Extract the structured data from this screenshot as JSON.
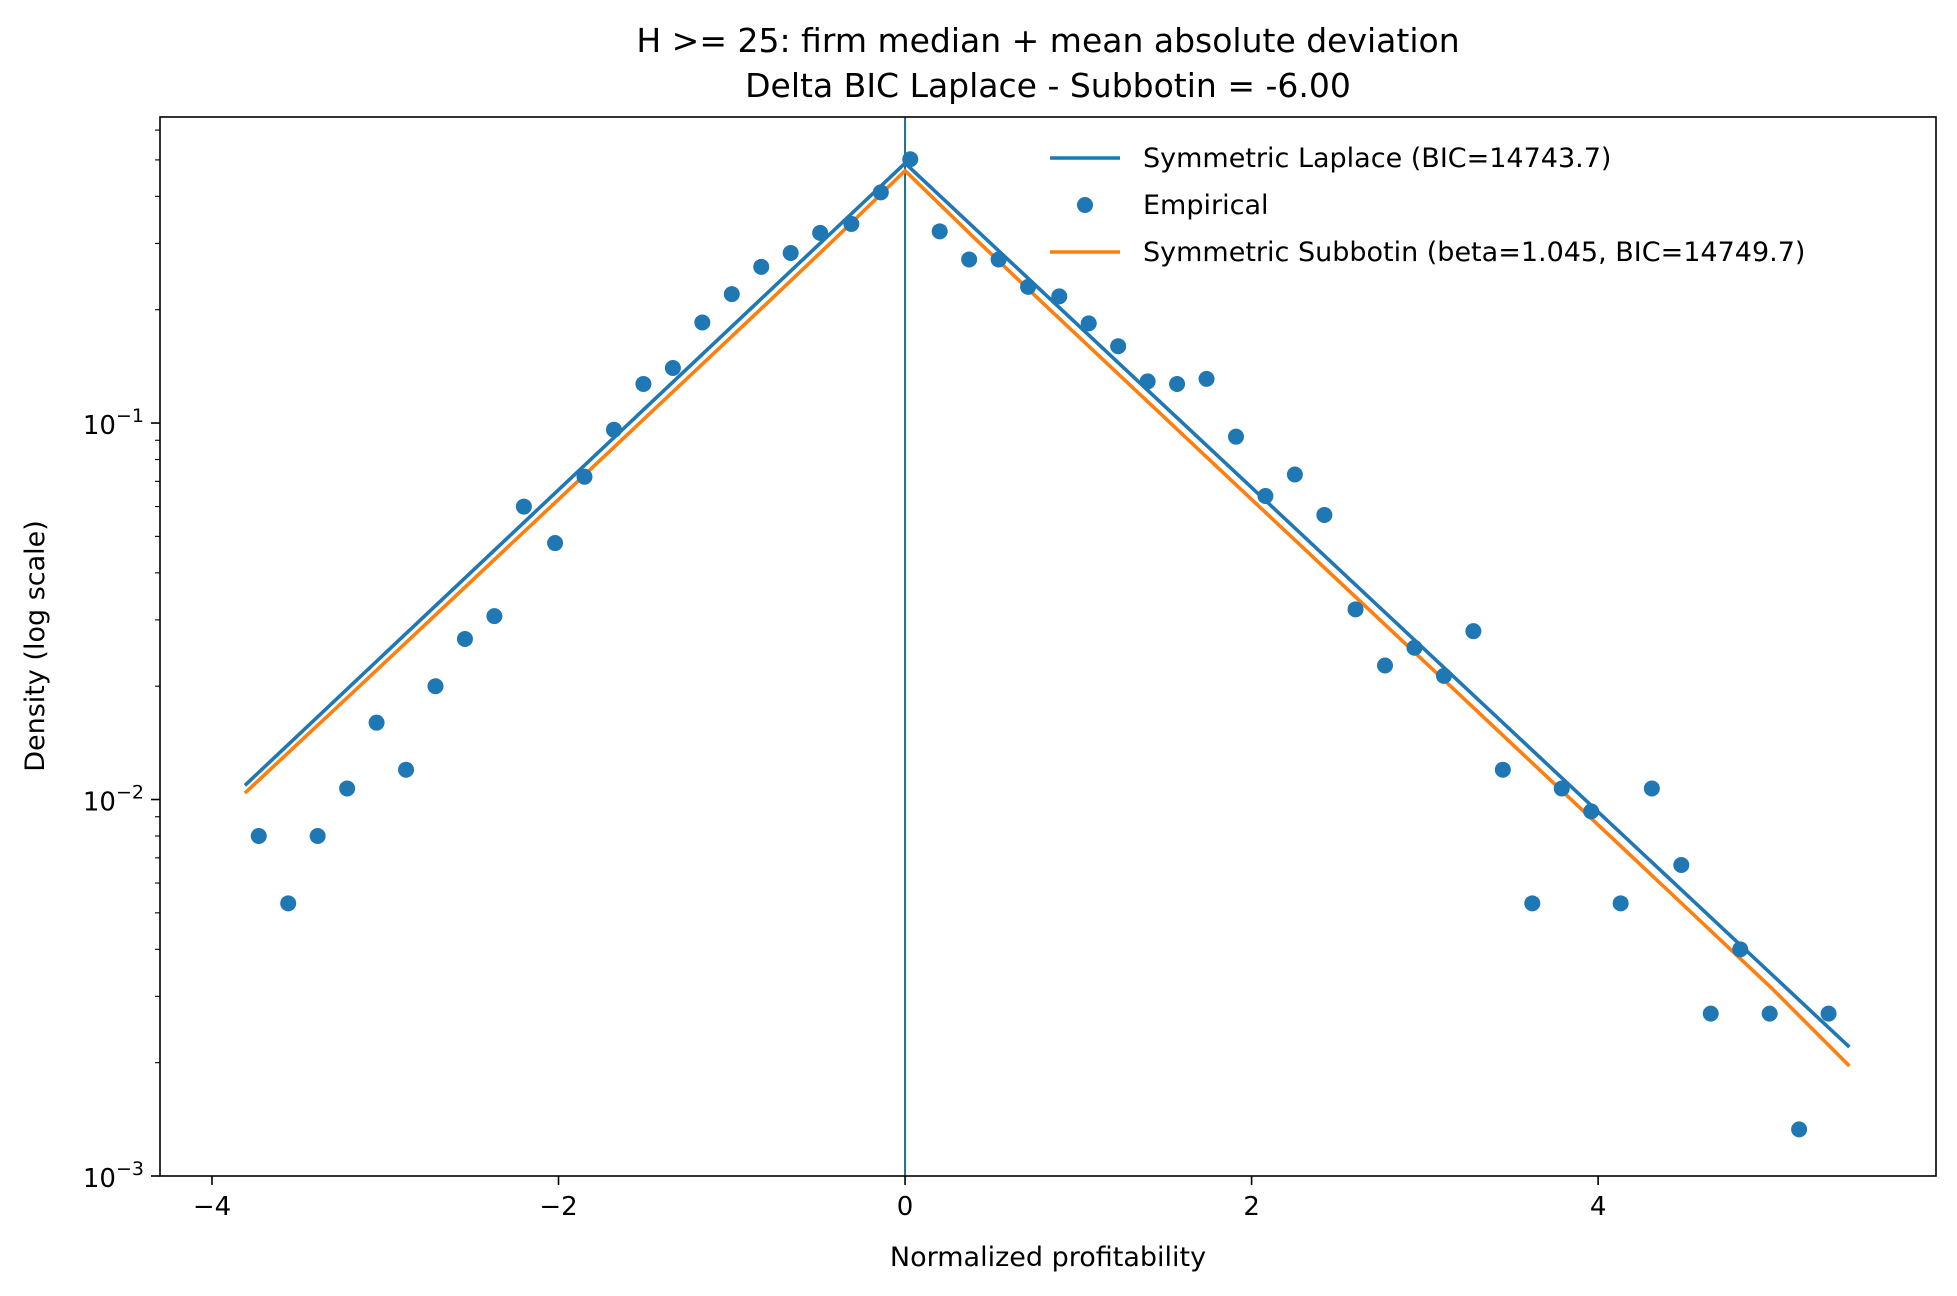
{
  "chart_data": {
    "type": "scatter",
    "title": "H >= 25: firm median + mean absolute deviation",
    "subtitle": "Delta BIC Laplace - Subbotin = -6.00",
    "xlabel": "Normalized profitability",
    "ylabel": "Density (log scale)",
    "xlim": [
      -4.3,
      5.95
    ],
    "ylim": [
      0.001,
      0.65
    ],
    "yscale": "log",
    "grid": false,
    "legend_position": "top-right",
    "x_ticks": [
      {
        "value": -4,
        "label": "−4"
      },
      {
        "value": -2,
        "label": "−2"
      },
      {
        "value": 0,
        "label": "0"
      },
      {
        "value": 2,
        "label": "2"
      },
      {
        "value": 4,
        "label": "4"
      }
    ],
    "y_ticks": [
      {
        "value": 0.1,
        "base": "10",
        "exp": "−1"
      },
      {
        "value": 0.01,
        "base": "10",
        "exp": "−2"
      },
      {
        "value": 0.001,
        "base": "10",
        "exp": "−3"
      }
    ],
    "vline": {
      "x": 0,
      "color": "#1f6f8b"
    },
    "series": [
      {
        "name": "Empirical",
        "kind": "scatter",
        "color": "#1f77b4",
        "x": [
          -3.73,
          -3.56,
          -3.39,
          -3.22,
          -3.05,
          -2.88,
          -2.71,
          -2.54,
          -2.37,
          -2.2,
          -2.02,
          -1.85,
          -1.68,
          -1.51,
          -1.34,
          -1.17,
          -1.0,
          -0.83,
          -0.66,
          -0.49,
          -0.31,
          -0.14,
          0.03,
          0.2,
          0.37,
          0.54,
          0.71,
          0.89,
          1.06,
          1.23,
          1.4,
          1.57,
          1.74,
          1.91,
          2.08,
          2.25,
          2.42,
          2.6,
          2.77,
          2.94,
          3.11,
          3.28,
          3.45,
          3.62,
          3.79,
          3.96,
          4.13,
          4.31,
          4.48,
          4.65,
          4.82,
          4.99,
          5.16,
          5.33
        ],
        "y": [
          0.008,
          0.0053,
          0.008,
          0.0107,
          0.016,
          0.012,
          0.02,
          0.0267,
          0.0307,
          0.06,
          0.048,
          0.072,
          0.096,
          0.127,
          0.14,
          0.185,
          0.22,
          0.26,
          0.283,
          0.32,
          0.338,
          0.41,
          0.502,
          0.323,
          0.272,
          0.272,
          0.23,
          0.217,
          0.184,
          0.16,
          0.129,
          0.127,
          0.131,
          0.092,
          0.064,
          0.073,
          0.057,
          0.032,
          0.0227,
          0.0253,
          0.0213,
          0.028,
          0.012,
          0.0053,
          0.0107,
          0.0093,
          0.0053,
          0.0107,
          0.0067,
          0.0027,
          0.004,
          0.0027,
          0.00133,
          0.0027
        ]
      },
      {
        "name": "Symmetric Laplace (BIC=14743.7)",
        "kind": "line",
        "color": "#1f77b4",
        "x": [
          -3.81,
          0.0,
          5.45
        ],
        "y": [
          0.0109,
          0.49,
          0.0022
        ]
      },
      {
        "name": "Symmetric Subbotin (beta=1.045, BIC=14749.7)",
        "kind": "line",
        "color": "#ff7f0e",
        "x": [
          -3.81,
          -3.2,
          -2.6,
          -2.0,
          -1.4,
          -0.8,
          -0.4,
          0.0,
          0.4,
          0.8,
          1.4,
          2.0,
          2.6,
          3.2,
          3.8,
          4.4,
          5.0,
          5.45
        ],
        "y": [
          0.0104,
          0.019,
          0.0345,
          0.0627,
          0.114,
          0.2074,
          0.3099,
          0.468,
          0.3099,
          0.2074,
          0.114,
          0.0627,
          0.0345,
          0.019,
          0.01045,
          0.00575,
          0.00316,
          0.00196
        ]
      }
    ]
  }
}
